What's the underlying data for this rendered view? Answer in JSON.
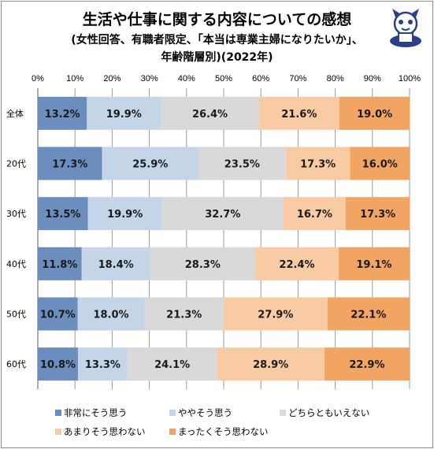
{
  "title": "生活や仕事に関する内容についての感想",
  "subtitle_line1": "(女性回答、有職者限定、「本当は専業主婦になりたいか」、",
  "subtitle_line2": "年齢階層別)(2022年)",
  "chart_data": {
    "type": "bar",
    "orientation": "horizontal",
    "stacked": "100%",
    "title": "生活や仕事に関する内容についての感想",
    "subtitle": "(女性回答、有職者限定、「本当は専業主婦になりたいか」、年齢階層別)(2022年)",
    "categories": [
      "全体",
      "20代",
      "30代",
      "40代",
      "50代",
      "60代"
    ],
    "xlim": [
      0,
      100
    ],
    "ticks": [
      "0%",
      "10%",
      "20%",
      "30%",
      "40%",
      "50%",
      "60%",
      "70%",
      "80%",
      "90%",
      "100%"
    ],
    "grid": true,
    "legend_position": "bottom",
    "series": [
      {
        "name": "非常にそう思う",
        "color": "#6c8ebf",
        "values": [
          13.2,
          17.3,
          13.5,
          11.8,
          10.7,
          10.8
        ],
        "labels": [
          "13.2%",
          "17.3%",
          "13.5%",
          "11.8%",
          "10.7%",
          "10.8%"
        ]
      },
      {
        "name": "ややそう思う",
        "color": "#c5d5e8",
        "values": [
          19.9,
          25.9,
          19.9,
          18.4,
          18.0,
          13.3
        ],
        "labels": [
          "19.9%",
          "25.9%",
          "19.9%",
          "18.4%",
          "18.0%",
          "13.3%"
        ]
      },
      {
        "name": "どちらともいえない",
        "color": "#d9d9d9",
        "values": [
          26.4,
          23.5,
          32.7,
          28.3,
          21.3,
          24.1
        ],
        "labels": [
          "26.4%",
          "23.5%",
          "32.7%",
          "28.3%",
          "21.3%",
          "24.1%"
        ]
      },
      {
        "name": "あまりそう思わない",
        "color": "#f9cba4",
        "values": [
          21.6,
          17.3,
          16.7,
          22.4,
          27.9,
          28.9
        ],
        "labels": [
          "21.6%",
          "17.3%",
          "16.7%",
          "22.4%",
          "27.9%",
          "28.9%"
        ]
      },
      {
        "name": "まったくそう思わない",
        "color": "#f2a463",
        "values": [
          19.0,
          16.0,
          17.3,
          19.1,
          22.1,
          22.9
        ],
        "labels": [
          "19.0%",
          "16.0%",
          "17.3%",
          "19.1%",
          "22.1%",
          "22.9%"
        ]
      }
    ]
  }
}
